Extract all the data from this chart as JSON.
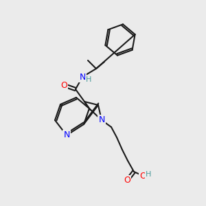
{
  "bg_color": "#ebebeb",
  "bond_color": "#1a1a1a",
  "bond_lw": 1.5,
  "atom_colors": {
    "N": "#0000ff",
    "O": "#ff0000",
    "H": "#4a9a9a"
  },
  "font_size": 9,
  "font_size_small": 8
}
